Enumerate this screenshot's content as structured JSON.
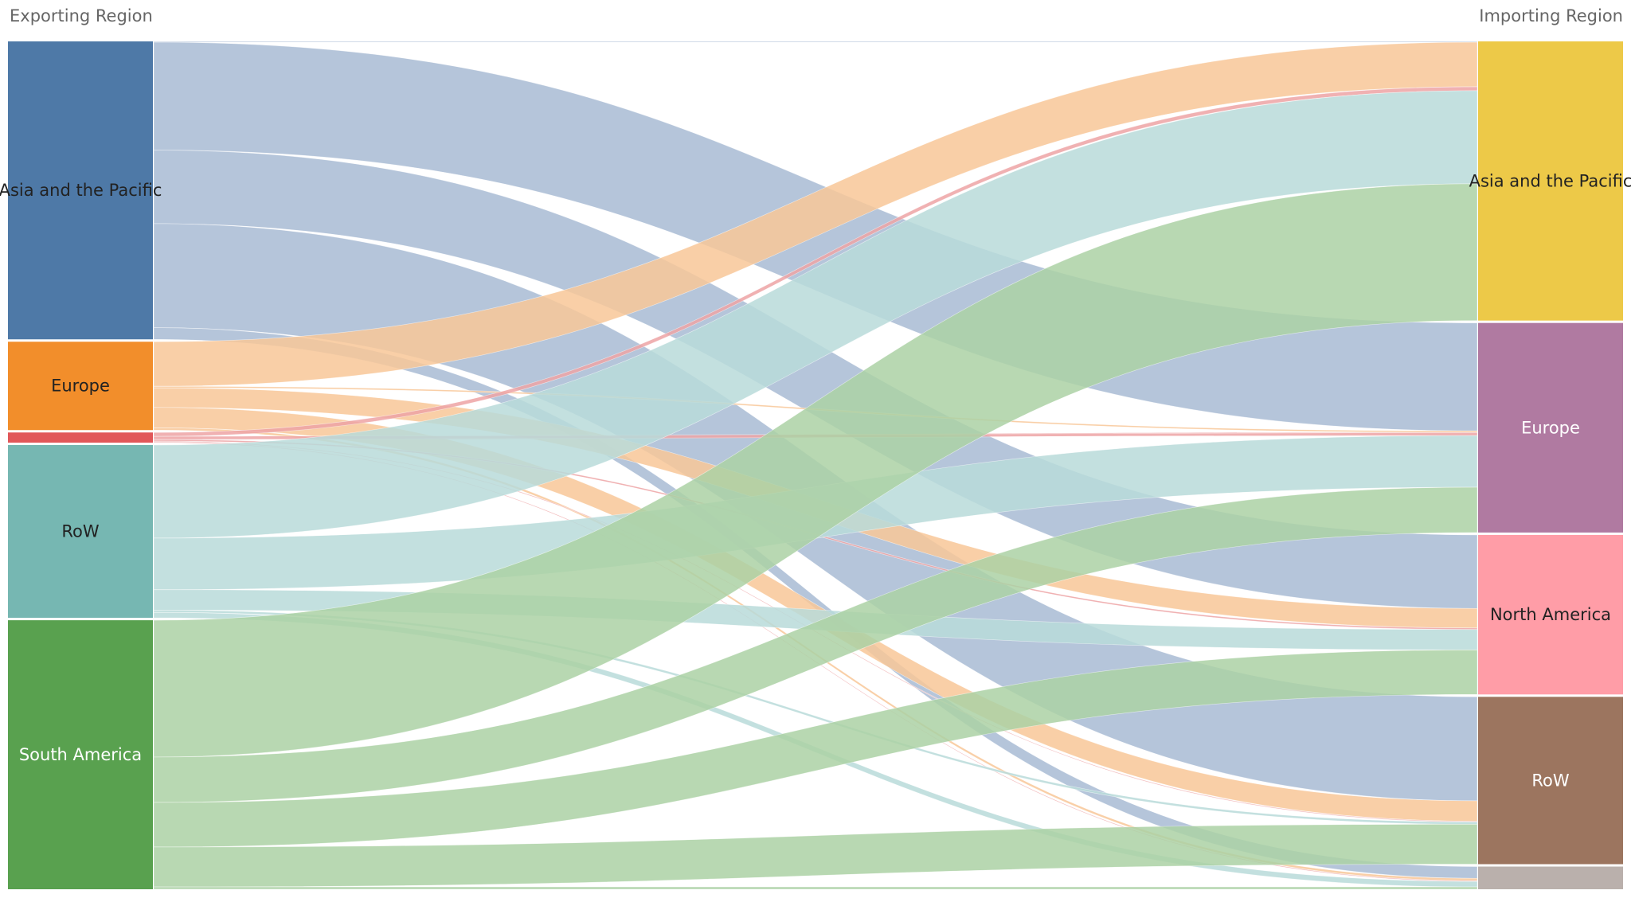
{
  "chart_data": {
    "type": "sankey",
    "source_axis_title": "Exporting Region",
    "target_axis_title": "Importing Region",
    "sources": [
      {
        "id": "ap",
        "name": "Asia and the Pacific",
        "color": "#4e79a7",
        "flow_color": "#a8bbd4",
        "text_color": "#222222"
      },
      {
        "id": "eu",
        "name": "Europe",
        "color": "#f28e2b",
        "flow_color": "#f8c798",
        "text_color": "#222222"
      },
      {
        "id": "na",
        "name": "",
        "color": "#e15759",
        "flow_color": "#eda3a5",
        "text_color": "#222222"
      },
      {
        "id": "row",
        "name": "RoW",
        "color": "#76b7b2",
        "flow_color": "#b8dbd9",
        "text_color": "#222222"
      },
      {
        "id": "sa",
        "name": "South America",
        "color": "#59a14f",
        "flow_color": "#acd1a5",
        "text_color": "#ffffff"
      }
    ],
    "targets": [
      {
        "id": "ap",
        "name": "Asia and the Pacific",
        "color": "#edc948",
        "text_color": "#222222"
      },
      {
        "id": "eu",
        "name": "Europe",
        "color": "#b07aa1",
        "text_color": "#ffffff"
      },
      {
        "id": "na",
        "name": "North America",
        "color": "#ff9da7",
        "text_color": "#222222"
      },
      {
        "id": "row",
        "name": "RoW",
        "color": "#9c755f",
        "text_color": "#ffffff"
      },
      {
        "id": "sa",
        "name": "",
        "color": "#bab0ac",
        "text_color": "#222222"
      }
    ],
    "flows": [
      {
        "source": "ap",
        "target": "ap",
        "value": 1
      },
      {
        "source": "ap",
        "target": "eu",
        "value": 138
      },
      {
        "source": "ap",
        "target": "na",
        "value": 94
      },
      {
        "source": "ap",
        "target": "row",
        "value": 133
      },
      {
        "source": "ap",
        "target": "sa",
        "value": 15
      },
      {
        "source": "eu",
        "target": "ap",
        "value": 57
      },
      {
        "source": "eu",
        "target": "eu",
        "value": 2
      },
      {
        "source": "eu",
        "target": "na",
        "value": 25
      },
      {
        "source": "eu",
        "target": "row",
        "value": 26
      },
      {
        "source": "eu",
        "target": "sa",
        "value": 3
      },
      {
        "source": "na",
        "target": "ap",
        "value": 5
      },
      {
        "source": "na",
        "target": "eu",
        "value": 4
      },
      {
        "source": "na",
        "target": "na",
        "value": 2
      },
      {
        "source": "na",
        "target": "row",
        "value": 1
      },
      {
        "source": "na",
        "target": "sa",
        "value": 1
      },
      {
        "source": "row",
        "target": "ap",
        "value": 119
      },
      {
        "source": "row",
        "target": "eu",
        "value": 66
      },
      {
        "source": "row",
        "target": "na",
        "value": 26
      },
      {
        "source": "row",
        "target": "row",
        "value": 3
      },
      {
        "source": "row",
        "target": "sa",
        "value": 7
      },
      {
        "source": "sa",
        "target": "ap",
        "value": 175
      },
      {
        "source": "sa",
        "target": "eu",
        "value": 58
      },
      {
        "source": "sa",
        "target": "na",
        "value": 57
      },
      {
        "source": "sa",
        "target": "row",
        "value": 51
      },
      {
        "source": "sa",
        "target": "sa",
        "value": 3
      }
    ],
    "link_opacity": 0.85,
    "grid": false,
    "legend": "none"
  }
}
